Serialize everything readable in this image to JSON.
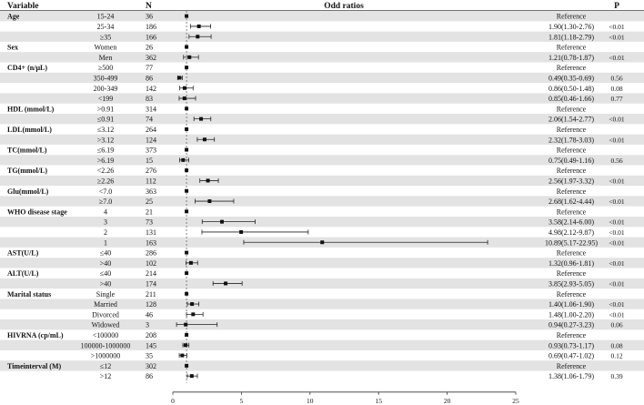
{
  "chart_data": {
    "type": "forest",
    "headers": {
      "variable": "Variable",
      "n": "N",
      "plot": "Odd ratios",
      "p": "P"
    },
    "xlim": [
      0,
      25
    ],
    "xticks": [
      "0",
      "5",
      "10",
      "15",
      "20",
      "25"
    ],
    "reference_line": 1,
    "rows": [
      {
        "variable": "Age",
        "level": "15-24",
        "n": "36",
        "or_text": "Reference",
        "p": "",
        "or": 1,
        "lo": null,
        "hi": null
      },
      {
        "variable": "",
        "level": "25-34",
        "n": "186",
        "or_text": "1.90(1.30-2.76)",
        "p": "<0.01",
        "or": 1.9,
        "lo": 1.3,
        "hi": 2.76
      },
      {
        "variable": "",
        "level": "≥35",
        "n": "166",
        "or_text": "1.81(1.18-2.79)",
        "p": "<0.01",
        "or": 1.81,
        "lo": 1.18,
        "hi": 2.79
      },
      {
        "variable": "Sex",
        "level": "Women",
        "n": "26",
        "or_text": "Reference",
        "p": "",
        "or": 1,
        "lo": null,
        "hi": null
      },
      {
        "variable": "",
        "level": "Men",
        "n": "362",
        "or_text": "1.21(0.78-1.87)",
        "p": "<0.01",
        "or": 1.21,
        "lo": 0.78,
        "hi": 1.87
      },
      {
        "variable": "CD4+ (n/μL)",
        "level": "≥500",
        "n": "77",
        "or_text": "Reference",
        "p": "",
        "or": 1,
        "lo": null,
        "hi": null
      },
      {
        "variable": "",
        "level": "350-499",
        "n": "86",
        "or_text": "0.49(0.35-0.69)",
        "p": "0.56",
        "or": 0.49,
        "lo": 0.35,
        "hi": 0.69
      },
      {
        "variable": "",
        "level": "200-349",
        "n": "142",
        "or_text": "0.86(0.50-1.48)",
        "p": "0.08",
        "or": 0.86,
        "lo": 0.5,
        "hi": 1.48
      },
      {
        "variable": "",
        "level": "<199",
        "n": "83",
        "or_text": "0.85(0.46-1.66)",
        "p": "0.77",
        "or": 0.85,
        "lo": 0.46,
        "hi": 1.66
      },
      {
        "variable": "HDL (mmol/L)",
        "level": ">0.91",
        "n": "314",
        "or_text": "Reference",
        "p": "",
        "or": 1,
        "lo": null,
        "hi": null
      },
      {
        "variable": "",
        "level": "≤0.91",
        "n": "74",
        "or_text": "2.06(1.54-2.77)",
        "p": "<0.01",
        "or": 2.06,
        "lo": 1.54,
        "hi": 2.77
      },
      {
        "variable": "LDL(mmol/L)",
        "level": "≤3.12",
        "n": "264",
        "or_text": "Reference",
        "p": "",
        "or": 1,
        "lo": null,
        "hi": null
      },
      {
        "variable": "",
        "level": ">3.12",
        "n": "124",
        "or_text": "2.32(1.78-3.03)",
        "p": "<0.01",
        "or": 2.32,
        "lo": 1.78,
        "hi": 3.03
      },
      {
        "variable": "TC(mmol/L)",
        "level": "≤6.19",
        "n": "373",
        "or_text": "Reference",
        "p": "",
        "or": 1,
        "lo": null,
        "hi": null
      },
      {
        "variable": "",
        "level": ">6.19",
        "n": "15",
        "or_text": "0.75(0.49-1.16)",
        "p": "0.56",
        "or": 0.75,
        "lo": 0.49,
        "hi": 1.16
      },
      {
        "variable": "TG(mmol/L)",
        "level": "<2.26",
        "n": "276",
        "or_text": "Reference",
        "p": "",
        "or": 1,
        "lo": null,
        "hi": null
      },
      {
        "variable": "",
        "level": "≥2.26",
        "n": "112",
        "or_text": "2.56(1.97-3.32)",
        "p": "<0.01",
        "or": 2.56,
        "lo": 1.97,
        "hi": 3.32
      },
      {
        "variable": "Glu(mmol/L)",
        "level": "<7.0",
        "n": "363",
        "or_text": "Reference",
        "p": "",
        "or": 1,
        "lo": null,
        "hi": null
      },
      {
        "variable": "",
        "level": "≥7.0",
        "n": "25",
        "or_text": "2.68(1.62-4.44)",
        "p": "<0.01",
        "or": 2.68,
        "lo": 1.62,
        "hi": 4.44
      },
      {
        "variable": "WHO disease stage",
        "level": "4",
        "n": "21",
        "or_text": "Reference",
        "p": "",
        "or": 1,
        "lo": null,
        "hi": null
      },
      {
        "variable": "",
        "level": "3",
        "n": "73",
        "or_text": "3.58(2.14-6.00)",
        "p": "<0.01",
        "or": 3.58,
        "lo": 2.14,
        "hi": 6.0
      },
      {
        "variable": "",
        "level": "2",
        "n": "131",
        "or_text": "4.98(2.12-9.87)",
        "p": "<0.01",
        "or": 4.98,
        "lo": 2.12,
        "hi": 9.87
      },
      {
        "variable": "",
        "level": "1",
        "n": "163",
        "or_text": "10.89(5.17-22.95)",
        "p": "<0.01",
        "or": 10.89,
        "lo": 5.17,
        "hi": 22.95
      },
      {
        "variable": "AST(U/L)",
        "level": "≤40",
        "n": "286",
        "or_text": "Reference",
        "p": "",
        "or": 1,
        "lo": null,
        "hi": null
      },
      {
        "variable": "",
        "level": ">40",
        "n": "102",
        "or_text": "1.32(0.96-1.81)",
        "p": "<0.01",
        "or": 1.32,
        "lo": 0.96,
        "hi": 1.81
      },
      {
        "variable": "ALT(U/L)",
        "level": "≤40",
        "n": "214",
        "or_text": "Reference",
        "p": "",
        "or": 1,
        "lo": null,
        "hi": null
      },
      {
        "variable": "",
        "level": ">40",
        "n": "174",
        "or_text": "3.85(2.93-5.05)",
        "p": "<0.01",
        "or": 3.85,
        "lo": 2.93,
        "hi": 5.05
      },
      {
        "variable": "Marital status",
        "level": "Single",
        "n": "211",
        "or_text": "Reference",
        "p": "",
        "or": 1,
        "lo": null,
        "hi": null
      },
      {
        "variable": "",
        "level": "Married",
        "n": "128",
        "or_text": "1.40(1.06-1.90)",
        "p": "<0.01",
        "or": 1.4,
        "lo": 1.06,
        "hi": 1.9
      },
      {
        "variable": "",
        "level": "Divorced",
        "n": "46",
        "or_text": "1.48(1.00-2.20)",
        "p": "<0.01",
        "or": 1.48,
        "lo": 1.0,
        "hi": 2.2
      },
      {
        "variable": "",
        "level": "Widowed",
        "n": "3",
        "or_text": "0.94(0.27-3.23)",
        "p": "0.06",
        "or": 0.94,
        "lo": 0.27,
        "hi": 3.23
      },
      {
        "variable": "HIVRNA (cp/mL)",
        "level": "<100000",
        "n": "208",
        "or_text": "Reference",
        "p": "",
        "or": 1,
        "lo": null,
        "hi": null
      },
      {
        "variable": "",
        "level": "100000-1000000",
        "n": "145",
        "or_text": "0.93(0.73-1.17)",
        "p": "0.08",
        "or": 0.93,
        "lo": 0.73,
        "hi": 1.17
      },
      {
        "variable": "",
        "level": ">1000000",
        "n": "35",
        "or_text": "0.69(0.47-1.02)",
        "p": "0.12",
        "or": 0.69,
        "lo": 0.47,
        "hi": 1.02
      },
      {
        "variable": "Timeinterval (M)",
        "level": "≤12",
        "n": "302",
        "or_text": "Reference",
        "p": "",
        "or": 1,
        "lo": null,
        "hi": null
      },
      {
        "variable": "",
        "level": ">12",
        "n": "86",
        "or_text": "1.38(1.06-1.79)",
        "p": "0.39",
        "or": 1.38,
        "lo": 1.06,
        "hi": 1.79
      }
    ]
  }
}
